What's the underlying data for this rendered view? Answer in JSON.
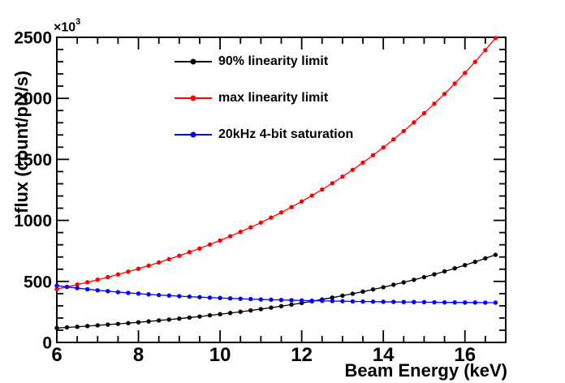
{
  "chart_data": {
    "type": "line",
    "title": "",
    "xlabel": "Beam Energy (keV)",
    "ylabel": "flux (count/pix/s)",
    "y_multiplier_base": "×10",
    "y_multiplier_exp": "3",
    "y_unit_note": "values in 10^3 count/pix/s",
    "xlim": [
      6,
      17
    ],
    "ylim": [
      0,
      2500
    ],
    "x_major_ticks": [
      6,
      8,
      10,
      12,
      14,
      16
    ],
    "x_minor_step": 0.5,
    "y_major_ticks": [
      0,
      500,
      1000,
      1500,
      2000,
      2500
    ],
    "y_minor_step": 100,
    "grid": false,
    "legend_position": "top-left-inside",
    "marker": "filled-circle",
    "x": [
      6.0,
      6.25,
      6.5,
      6.75,
      7.0,
      7.25,
      7.5,
      7.75,
      8.0,
      8.25,
      8.5,
      8.75,
      9.0,
      9.25,
      9.5,
      9.75,
      10.0,
      10.25,
      10.5,
      10.75,
      11.0,
      11.25,
      11.5,
      11.75,
      12.0,
      12.25,
      12.5,
      12.75,
      13.0,
      13.25,
      13.5,
      13.75,
      14.0,
      14.25,
      14.5,
      14.75,
      15.0,
      15.25,
      15.5,
      15.75,
      16.0,
      16.25,
      16.5,
      16.75
    ],
    "series": [
      {
        "name": "90% linearity limit",
        "color": "#000000",
        "values": [
          118,
          123,
          128,
          134,
          140,
          146,
          152,
          158,
          165,
          172,
          180,
          187,
          195,
          204,
          212,
          222,
          231,
          241,
          251,
          262,
          273,
          285,
          297,
          310,
          323,
          337,
          352,
          367,
          383,
          399,
          416,
          434,
          452,
          472,
          492,
          513,
          535,
          558,
          582,
          607,
          633,
          660,
          689,
          718
        ]
      },
      {
        "name": "max linearity limit",
        "color": "#ff0000",
        "values": [
          437,
          455,
          474,
          493,
          514,
          535,
          557,
          580,
          604,
          629,
          655,
          682,
          710,
          740,
          770,
          802,
          835,
          870,
          906,
          943,
          982,
          1023,
          1065,
          1109,
          1155,
          1203,
          1253,
          1304,
          1358,
          1414,
          1473,
          1534,
          1597,
          1663,
          1732,
          1803,
          1878,
          1956,
          2036,
          2121,
          2208,
          2299,
          2395,
          2494
        ]
      },
      {
        "name": "20kHz 4-bit saturation",
        "color": "#0000ff",
        "values": [
          465,
          455,
          445,
          436,
          427,
          420,
          412,
          406,
          400,
          394,
          388,
          384,
          379,
          375,
          371,
          367,
          364,
          361,
          358,
          355,
          352,
          350,
          348,
          346,
          344,
          342,
          341,
          339,
          338,
          336,
          335,
          334,
          333,
          332,
          331,
          331,
          330,
          329,
          328,
          328,
          327,
          327,
          326,
          326
        ]
      }
    ]
  }
}
